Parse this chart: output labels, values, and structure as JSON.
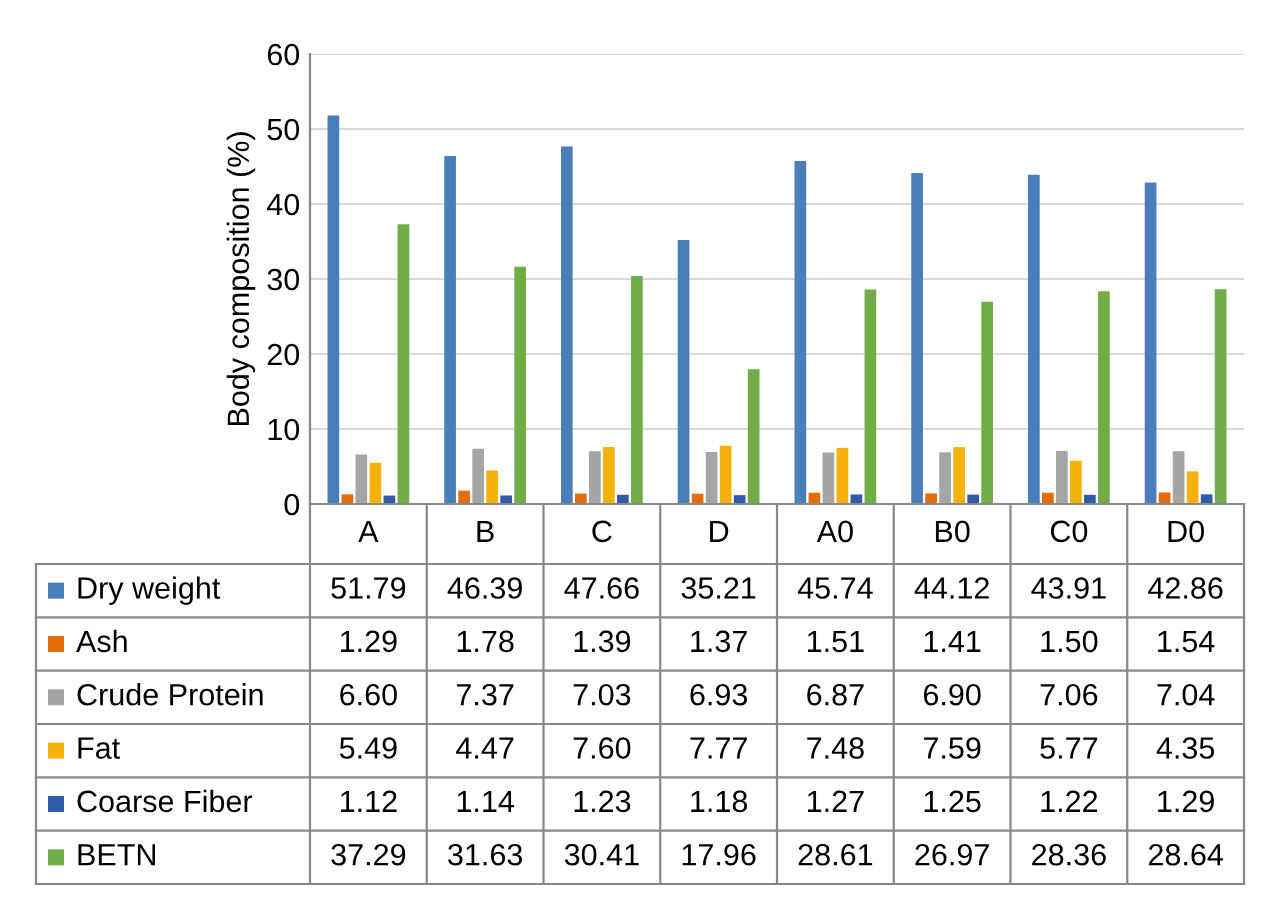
{
  "chart_data": {
    "type": "bar",
    "ylabel": "Body composition (%)",
    "categories": [
      "A",
      "B",
      "C",
      "D",
      "A0",
      "B0",
      "C0",
      "D0"
    ],
    "ylim": [
      0,
      60
    ],
    "yticks": [
      0,
      10,
      20,
      30,
      40,
      50,
      60
    ],
    "grid": "y",
    "legend": "bottom",
    "series": [
      {
        "name": "Dry weight",
        "color": "#4a7ebb",
        "values": [
          51.79,
          46.39,
          47.66,
          35.21,
          45.74,
          44.12,
          43.91,
          42.86
        ],
        "value_labels": [
          "51.79",
          "46.39",
          "47.66",
          "35.21",
          "45.74",
          "44.12",
          "43.91",
          "42.86"
        ]
      },
      {
        "name": "Ash",
        "color": "#e46c0a",
        "values": [
          1.29,
          1.78,
          1.39,
          1.37,
          1.51,
          1.41,
          1.5,
          1.54
        ],
        "value_labels": [
          "1.29",
          "1.78",
          "1.39",
          "1.37",
          "1.51",
          "1.41",
          "1.50",
          "1.54"
        ]
      },
      {
        "name": "Crude Protein",
        "color": "#a5a5a5",
        "values": [
          6.6,
          7.37,
          7.03,
          6.93,
          6.87,
          6.9,
          7.06,
          7.04
        ],
        "value_labels": [
          "6.60",
          "7.37",
          "7.03",
          "6.93",
          "6.87",
          "6.90",
          "7.06",
          "7.04"
        ]
      },
      {
        "name": "Fat",
        "color": "#f5b20a",
        "values": [
          5.49,
          4.47,
          7.6,
          7.77,
          7.48,
          7.59,
          5.77,
          4.35
        ],
        "value_labels": [
          "5.49",
          "4.47",
          "7.60",
          "7.77",
          "7.48",
          "7.59",
          "5.77",
          "4.35"
        ]
      },
      {
        "name": "Coarse Fiber",
        "color": "#2f5ba8",
        "values": [
          1.12,
          1.14,
          1.23,
          1.18,
          1.27,
          1.25,
          1.22,
          1.29
        ],
        "value_labels": [
          "1.12",
          "1.14",
          "1.23",
          "1.18",
          "1.27",
          "1.25",
          "1.22",
          "1.29"
        ]
      },
      {
        "name": "BETN",
        "color": "#70ad47",
        "values": [
          37.29,
          31.63,
          30.41,
          17.96,
          28.61,
          26.97,
          28.36,
          28.64
        ],
        "value_labels": [
          "37.29",
          "31.63",
          "30.41",
          "17.96",
          "28.61",
          "26.97",
          "28.36",
          "28.64"
        ]
      }
    ]
  }
}
